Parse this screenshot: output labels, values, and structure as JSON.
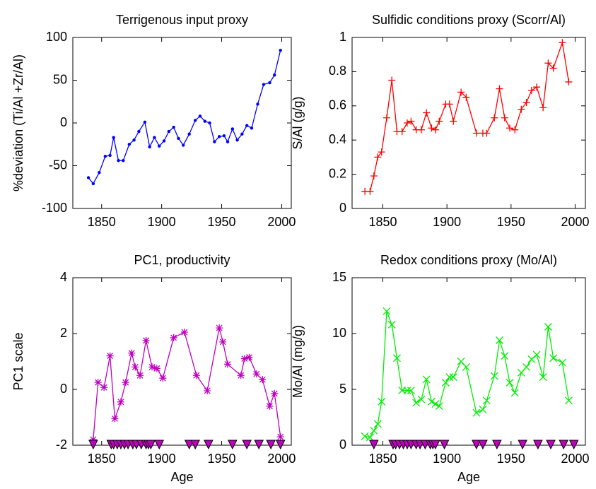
{
  "chart_data": [
    {
      "type": "line",
      "title": "Terrigenous input proxy",
      "y_label": "%deviation (Ti/Al +Zr/Al)",
      "xlim": [
        1826,
        2008
      ],
      "ylim": [
        -100,
        100
      ],
      "xticks": [
        1850,
        1900,
        1950,
        2000
      ],
      "yticks": [
        -100,
        -50,
        0,
        50,
        100
      ],
      "series": [
        {
          "color": "#0000ff",
          "marker": ".",
          "linestyle": "solid",
          "x": [
            1839,
            1843,
            1848,
            1853,
            1857,
            1860,
            1864,
            1868,
            1873,
            1877,
            1881,
            1886,
            1890,
            1894,
            1898,
            1902,
            1906,
            1910,
            1914,
            1918,
            1923,
            1928,
            1932,
            1936,
            1940,
            1944,
            1948,
            1952,
            1955,
            1959,
            1963,
            1967,
            1971,
            1975,
            1980,
            1985,
            1990,
            1994,
            1999
          ],
          "values": [
            -64,
            -71,
            -58,
            -39,
            -38,
            -17,
            -44,
            -44,
            -25,
            -20,
            -10,
            1,
            -28,
            -17,
            -27,
            -21,
            -10,
            -5,
            -18,
            -26,
            -13,
            3,
            8,
            2,
            0,
            -22,
            -16,
            -15,
            -22,
            -7,
            -20,
            -13,
            -3,
            -6,
            22,
            45,
            47,
            56,
            85
          ]
        }
      ]
    },
    {
      "type": "line",
      "title": "Sulfidic conditions proxy (Scorr/Al)",
      "y_label": "S/Al (g/g)",
      "xlim": [
        1826,
        2008
      ],
      "ylim": [
        0,
        1
      ],
      "xticks": [
        1850,
        1900,
        1950,
        2000
      ],
      "yticks": [
        0,
        0.2,
        0.4,
        0.6,
        0.8,
        1
      ],
      "series": [
        {
          "color": "#ff0000",
          "marker": "+",
          "linestyle": "solid",
          "x": [
            1836,
            1840,
            1843,
            1846,
            1849,
            1853,
            1857,
            1861,
            1865,
            1869,
            1872,
            1876,
            1880,
            1884,
            1888,
            1891,
            1894,
            1899,
            1902,
            1905,
            1911,
            1915,
            1923,
            1928,
            1931,
            1937,
            1941,
            1945,
            1949,
            1953,
            1958,
            1962,
            1966,
            1970,
            1975,
            1979,
            1983,
            1990,
            1995
          ],
          "values": [
            0.1,
            0.1,
            0.19,
            0.3,
            0.33,
            0.53,
            0.75,
            0.45,
            0.45,
            0.5,
            0.51,
            0.46,
            0.46,
            0.56,
            0.47,
            0.46,
            0.51,
            0.61,
            0.61,
            0.51,
            0.68,
            0.65,
            0.44,
            0.44,
            0.44,
            0.53,
            0.7,
            0.53,
            0.47,
            0.46,
            0.58,
            0.62,
            0.69,
            0.71,
            0.59,
            0.85,
            0.82,
            0.97,
            0.74
          ]
        }
      ]
    },
    {
      "type": "line",
      "title": "PC1, productivity",
      "x_label": "Age",
      "y_label": "PC1 scale",
      "xlim": [
        1826,
        2008
      ],
      "ylim": [
        -2,
        4
      ],
      "xticks": [
        1850,
        1900,
        1950,
        2000
      ],
      "yticks": [
        -2,
        0,
        2,
        4
      ],
      "series": [
        {
          "color": "#bf00bf",
          "marker": "*",
          "linestyle": "solid",
          "x": [
            1843,
            1847,
            1852,
            1857,
            1861,
            1866,
            1870,
            1875,
            1878,
            1882,
            1887,
            1892,
            1896,
            1901,
            1910,
            1919,
            1929,
            1938,
            1948,
            1951,
            1955,
            1966,
            1969,
            1973,
            1979,
            1984,
            1990,
            1994,
            1999
          ],
          "values": [
            -1.8,
            0.25,
            0.07,
            1.2,
            -1.05,
            -0.45,
            0.25,
            1.3,
            0.8,
            0.5,
            1.75,
            0.8,
            0.75,
            0.4,
            1.85,
            2.05,
            0.5,
            -0.05,
            2.2,
            1.7,
            0.9,
            0.5,
            1.1,
            1.15,
            0.55,
            0.35,
            -0.6,
            -0.15,
            -1.7
          ]
        },
        {
          "color": "#bf00bf",
          "marker": "v",
          "linestyle": "none",
          "x": [
            1843,
            1858,
            1860,
            1863,
            1866,
            1869,
            1872,
            1876,
            1879,
            1883,
            1887,
            1889,
            1891,
            1898,
            1923,
            1928,
            1939,
            1959,
            1971,
            1981,
            1991,
            1999
          ],
          "values": [
            -2,
            -2,
            -2,
            -2,
            -2,
            -2,
            -2,
            -2,
            -2,
            -2,
            -2,
            -2,
            -2,
            -2,
            -2,
            -2,
            -2,
            -2,
            -2,
            -2,
            -2,
            -2
          ]
        }
      ]
    },
    {
      "type": "line",
      "title": "Redox conditions proxy (Mo/Al)",
      "x_label": "Age",
      "y_label": "Mo/Al (mg/g)",
      "xlim": [
        1826,
        2008
      ],
      "ylim": [
        0,
        15
      ],
      "xticks": [
        1850,
        1900,
        1950,
        2000
      ],
      "yticks": [
        0,
        5,
        10,
        15
      ],
      "series": [
        {
          "color": "#00ee00",
          "marker": "x",
          "linestyle": "solid",
          "x": [
            1836,
            1840,
            1843,
            1846,
            1849,
            1853,
            1857,
            1861,
            1865,
            1869,
            1872,
            1876,
            1880,
            1884,
            1888,
            1891,
            1894,
            1899,
            1902,
            1905,
            1911,
            1915,
            1923,
            1928,
            1931,
            1937,
            1941,
            1945,
            1949,
            1953,
            1958,
            1962,
            1966,
            1970,
            1975,
            1979,
            1983,
            1990,
            1995
          ],
          "values": [
            0.8,
            0.7,
            1.3,
            1.9,
            3.9,
            12,
            10.8,
            7.8,
            4.9,
            4.9,
            4.9,
            3.8,
            4.1,
            5.9,
            3.9,
            3.7,
            3.5,
            5.6,
            6.1,
            6.1,
            7.5,
            7,
            2.9,
            3.2,
            4,
            6.2,
            9.4,
            8,
            5.6,
            4.7,
            6.5,
            7,
            7.7,
            8.1,
            6.1,
            10.6,
            7.8,
            7.4,
            4
          ]
        },
        {
          "color": "#bf00bf",
          "marker": "v",
          "linestyle": "none",
          "x": [
            1843,
            1858,
            1860,
            1863,
            1866,
            1869,
            1872,
            1876,
            1879,
            1883,
            1887,
            1889,
            1891,
            1898,
            1923,
            1928,
            1939,
            1959,
            1971,
            1981,
            1991,
            1999
          ],
          "values": [
            0,
            0,
            0,
            0,
            0,
            0,
            0,
            0,
            0,
            0,
            0,
            0,
            0,
            0,
            0,
            0,
            0,
            0,
            0,
            0,
            0,
            0
          ]
        }
      ]
    }
  ]
}
